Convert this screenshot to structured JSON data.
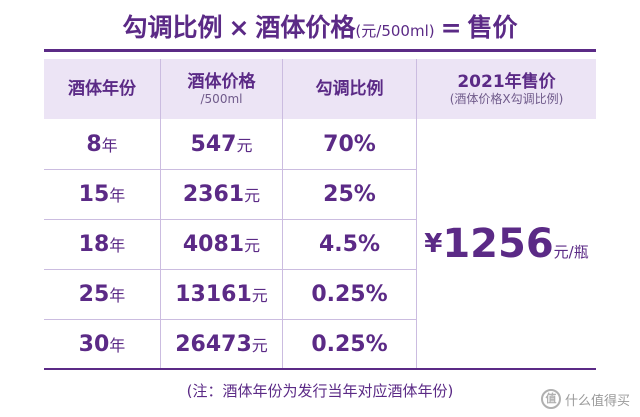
{
  "title": {
    "part1": "勾调比例",
    "times": "×",
    "part2": "酒体价格",
    "unit": "(元/500ml)",
    "equals": "=",
    "part3": "售价"
  },
  "table": {
    "headers": {
      "year": "酒体年份",
      "price_main": "酒体价格",
      "price_sub": "/500ml",
      "ratio": "勾调比例",
      "sale_main": "2021年售价",
      "sale_sub": "(酒体价格X勾调比例)"
    },
    "rows": [
      {
        "year_num": "8",
        "year_unit": "年",
        "price_num": "547",
        "price_unit": "元",
        "ratio": "70%"
      },
      {
        "year_num": "15",
        "year_unit": "年",
        "price_num": "2361",
        "price_unit": "元",
        "ratio": "25%"
      },
      {
        "year_num": "18",
        "year_unit": "年",
        "price_num": "4081",
        "price_unit": "元",
        "ratio": "4.5%"
      },
      {
        "year_num": "25",
        "year_unit": "年",
        "price_num": "13161",
        "price_unit": "元",
        "ratio": "0.25%"
      },
      {
        "year_num": "30",
        "year_unit": "年",
        "price_num": "26473",
        "price_unit": "元",
        "ratio": "0.25%"
      }
    ],
    "sale_price": {
      "currency": "¥",
      "value": "1256",
      "unit": "元/瓶"
    }
  },
  "note": "(注：酒体年份为发行当年对应酒体年份)",
  "watermark": {
    "logo": "值",
    "text": "什么值得买"
  },
  "colors": {
    "accent": "#5b2a86",
    "header_bg": "#ece4f5",
    "grid": "#cbbce0"
  }
}
